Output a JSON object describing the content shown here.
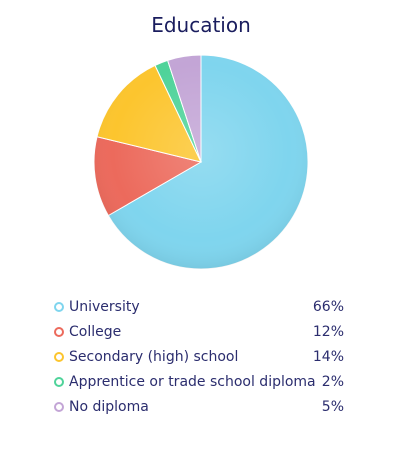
{
  "chart_data": {
    "type": "pie",
    "title": "Education",
    "categories": [
      "University",
      "College",
      "Secondary (high) school",
      "Apprentice or trade school diploma",
      "No diploma"
    ],
    "values": [
      66,
      12,
      14,
      2,
      5
    ],
    "labels": [
      "66%",
      "12%",
      "14%",
      "2%",
      "5%"
    ],
    "colors": [
      "#7fd5ee",
      "#ec6a5c",
      "#fcc52e",
      "#4fd39a",
      "#c3a5d6"
    ],
    "legend": "bottom"
  }
}
